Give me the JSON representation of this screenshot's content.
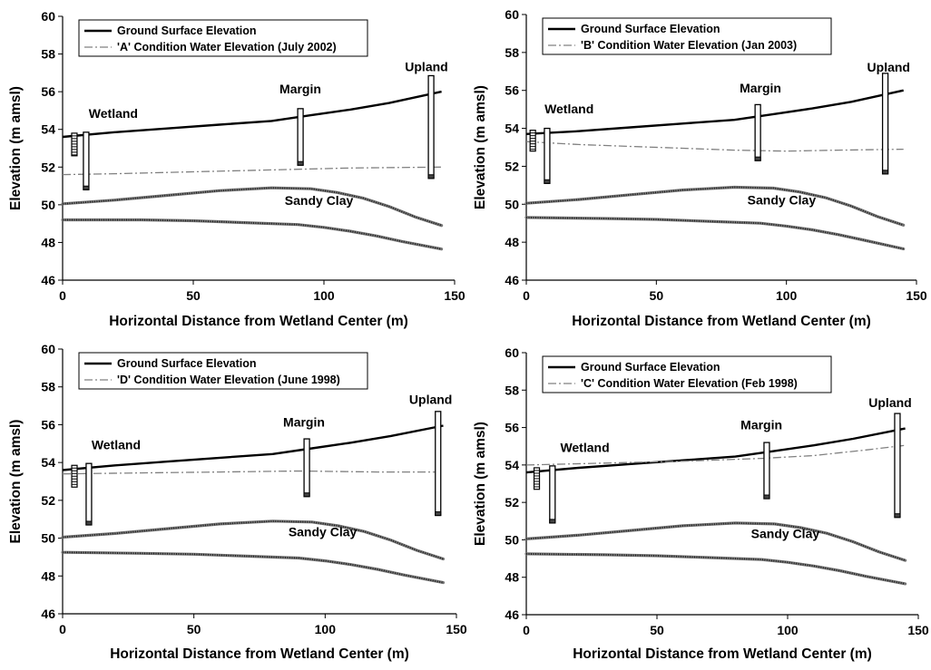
{
  "chart_data": [
    {
      "type": "line",
      "xlabel": "Horizontal Distance from Wetland Center (m)",
      "ylabel": "Elevation (m amsl)",
      "xlim": [
        0,
        150
      ],
      "ylim": [
        46,
        60
      ],
      "xticks": [
        0,
        50,
        100,
        150
      ],
      "yticks": [
        46,
        48,
        50,
        52,
        54,
        56,
        58,
        60
      ],
      "legend": {
        "placement": "top-left",
        "entries": [
          "Ground Surface Elevation",
          "'A' Condition Water Elevation (July 2002)"
        ]
      },
      "series": [
        {
          "name": "Ground Surface Elevation",
          "style": "solid",
          "color": "#000000",
          "x": [
            0,
            20,
            40,
            60,
            80,
            95,
            110,
            125,
            145
          ],
          "y": [
            53.6,
            53.85,
            54.05,
            54.25,
            54.45,
            54.75,
            55.05,
            55.4,
            56.0
          ]
        },
        {
          "name": "'A' Condition Water Elevation (July 2002)",
          "style": "dashdot",
          "color": "#808080",
          "x": [
            0,
            20,
            50,
            80,
            110,
            145
          ],
          "y": [
            51.6,
            51.65,
            51.75,
            51.85,
            51.95,
            52.0
          ]
        },
        {
          "style": "stipple",
          "x": [
            0,
            20,
            40,
            60,
            80,
            95,
            105,
            115,
            125,
            135,
            145
          ],
          "y": [
            50.05,
            50.25,
            50.5,
            50.75,
            50.9,
            50.85,
            50.65,
            50.35,
            49.9,
            49.35,
            48.9
          ]
        },
        {
          "style": "stipple",
          "x": [
            0,
            30,
            50,
            70,
            90,
            100,
            110,
            120,
            130,
            145
          ],
          "y": [
            49.2,
            49.2,
            49.15,
            49.05,
            48.95,
            48.8,
            48.6,
            48.35,
            48.05,
            47.65
          ]
        }
      ],
      "annotations": [
        {
          "text": "Wetland",
          "x": 10,
          "y": 54.6
        },
        {
          "text": "Margin",
          "x": 83,
          "y": 55.9
        },
        {
          "text": "Upland",
          "x": 131,
          "y": 57.1
        },
        {
          "text": "Sandy Clay",
          "x": 85,
          "y": 50.0
        }
      ],
      "wells": [
        {
          "x": 9,
          "top": 53.85,
          "bottom": 50.8
        },
        {
          "x": 91,
          "top": 55.1,
          "bottom": 52.1
        },
        {
          "x": 141,
          "top": 56.85,
          "bottom": 51.4
        }
      ],
      "piezometer": {
        "x": 4.5,
        "top": 53.8,
        "bottom": 52.6
      }
    },
    {
      "type": "line",
      "xlabel": "Horizontal Distance from Wetland Center (m)",
      "ylabel": "Elevation (m amsl)",
      "xlim": [
        0,
        150
      ],
      "ylim": [
        46,
        60
      ],
      "xticks": [
        0,
        50,
        100,
        150
      ],
      "yticks": [
        46,
        48,
        50,
        52,
        54,
        56,
        58,
        60
      ],
      "legend": {
        "placement": "top-left",
        "entries": [
          "Ground Surface Elevation",
          "'B' Condition Water Elevation (Jan 2003)"
        ]
      },
      "series": [
        {
          "name": "Ground Surface Elevation",
          "style": "solid",
          "color": "#000000",
          "x": [
            0,
            20,
            40,
            60,
            80,
            95,
            110,
            125,
            145
          ],
          "y": [
            53.7,
            53.85,
            54.05,
            54.25,
            54.45,
            54.75,
            55.05,
            55.4,
            56.0
          ]
        },
        {
          "name": "'B' Condition Water Elevation (Jan 2003)",
          "style": "dashdot",
          "color": "#808080",
          "x": [
            0,
            20,
            40,
            60,
            80,
            100,
            120,
            145
          ],
          "y": [
            53.3,
            53.15,
            53.05,
            52.95,
            52.85,
            52.8,
            52.85,
            52.9
          ]
        },
        {
          "style": "stipple",
          "x": [
            0,
            20,
            40,
            60,
            80,
            95,
            105,
            115,
            125,
            135,
            145
          ],
          "y": [
            50.05,
            50.25,
            50.5,
            50.75,
            50.9,
            50.85,
            50.65,
            50.35,
            49.9,
            49.35,
            48.9
          ]
        },
        {
          "style": "stipple",
          "x": [
            0,
            30,
            50,
            70,
            90,
            100,
            110,
            120,
            130,
            145
          ],
          "y": [
            49.3,
            49.25,
            49.2,
            49.1,
            49.0,
            48.85,
            48.65,
            48.4,
            48.1,
            47.65
          ]
        }
      ],
      "annotations": [
        {
          "text": "Wetland",
          "x": 7,
          "y": 54.8
        },
        {
          "text": "Margin",
          "x": 82,
          "y": 55.9
        },
        {
          "text": "Upland",
          "x": 131,
          "y": 57.0
        },
        {
          "text": "Sandy Clay",
          "x": 85,
          "y": 50.0
        }
      ],
      "wells": [
        {
          "x": 8,
          "top": 54.0,
          "bottom": 51.1
        },
        {
          "x": 89,
          "top": 55.25,
          "bottom": 52.3
        },
        {
          "x": 138,
          "top": 56.9,
          "bottom": 51.6
        }
      ],
      "piezometer": {
        "x": 2.5,
        "top": 53.9,
        "bottom": 52.8
      }
    },
    {
      "type": "line",
      "xlabel": "Horizontal Distance from Wetland Center (m)",
      "ylabel": "Elevation (m amsl)",
      "xlim": [
        0,
        150
      ],
      "ylim": [
        46,
        60
      ],
      "xticks": [
        0,
        50,
        100,
        150
      ],
      "yticks": [
        46,
        48,
        50,
        52,
        54,
        56,
        58,
        60
      ],
      "legend": {
        "placement": "top-left",
        "entries": [
          "Ground Surface Elevation",
          "'D' Condition Water Elevation (June 1998)"
        ]
      },
      "series": [
        {
          "name": "Ground Surface Elevation",
          "style": "solid",
          "color": "#000000",
          "x": [
            0,
            20,
            40,
            60,
            80,
            95,
            110,
            125,
            145
          ],
          "y": [
            53.6,
            53.85,
            54.05,
            54.25,
            54.45,
            54.75,
            55.05,
            55.4,
            55.95
          ]
        },
        {
          "name": "'D' Condition Water Elevation (June 1998)",
          "style": "dashdot",
          "color": "#808080",
          "x": [
            0,
            30,
            60,
            90,
            120,
            145
          ],
          "y": [
            53.4,
            53.45,
            53.5,
            53.55,
            53.5,
            53.5
          ]
        },
        {
          "style": "stipple",
          "x": [
            0,
            20,
            40,
            60,
            80,
            95,
            105,
            115,
            125,
            135,
            145
          ],
          "y": [
            50.05,
            50.25,
            50.5,
            50.75,
            50.9,
            50.85,
            50.65,
            50.35,
            49.9,
            49.35,
            48.9
          ]
        },
        {
          "style": "stipple",
          "x": [
            0,
            30,
            50,
            70,
            90,
            100,
            110,
            120,
            130,
            145
          ],
          "y": [
            49.25,
            49.2,
            49.15,
            49.05,
            48.95,
            48.8,
            48.6,
            48.35,
            48.05,
            47.65
          ]
        }
      ],
      "annotations": [
        {
          "text": "Wetland",
          "x": 11,
          "y": 54.7
        },
        {
          "text": "Margin",
          "x": 84,
          "y": 55.9
        },
        {
          "text": "Upland",
          "x": 132,
          "y": 57.1
        },
        {
          "text": "Sandy Clay",
          "x": 86,
          "y": 50.1
        }
      ],
      "wells": [
        {
          "x": 10,
          "top": 53.95,
          "bottom": 50.7
        },
        {
          "x": 93,
          "top": 55.25,
          "bottom": 52.2
        },
        {
          "x": 143,
          "top": 56.7,
          "bottom": 51.2
        }
      ],
      "piezometer": {
        "x": 4.5,
        "top": 53.85,
        "bottom": 52.7
      }
    },
    {
      "type": "line",
      "xlabel": "Horizontal Distance from Wetland Center (m)",
      "ylabel": "Elevation (m amsl)",
      "xlim": [
        0,
        150
      ],
      "ylim": [
        46,
        60
      ],
      "xticks": [
        0,
        50,
        100,
        150
      ],
      "yticks": [
        46,
        48,
        50,
        52,
        54,
        56,
        58,
        60
      ],
      "legend": {
        "placement": "top-left",
        "entries": [
          "Ground Surface Elevation",
          "'C' Condition Water Elevation (Feb 1998)"
        ]
      },
      "series": [
        {
          "name": "Ground Surface Elevation",
          "style": "solid",
          "color": "#000000",
          "x": [
            0,
            20,
            40,
            60,
            80,
            95,
            110,
            125,
            145
          ],
          "y": [
            53.6,
            53.85,
            54.05,
            54.25,
            54.45,
            54.75,
            55.05,
            55.4,
            55.95
          ]
        },
        {
          "name": "'C' Condition Water Elevation (Feb 1998)",
          "style": "dashdot",
          "color": "#808080",
          "x": [
            0,
            30,
            60,
            90,
            110,
            130,
            145
          ],
          "y": [
            54.0,
            54.1,
            54.2,
            54.35,
            54.5,
            54.8,
            55.05
          ]
        },
        {
          "style": "stipple",
          "x": [
            0,
            20,
            40,
            60,
            80,
            95,
            105,
            115,
            125,
            135,
            145
          ],
          "y": [
            50.05,
            50.25,
            50.5,
            50.75,
            50.9,
            50.85,
            50.65,
            50.35,
            49.9,
            49.35,
            48.9
          ]
        },
        {
          "style": "stipple",
          "x": [
            0,
            30,
            50,
            70,
            90,
            100,
            110,
            120,
            130,
            145
          ],
          "y": [
            49.25,
            49.2,
            49.15,
            49.05,
            48.95,
            48.8,
            48.6,
            48.35,
            48.05,
            47.65
          ]
        }
      ],
      "annotations": [
        {
          "text": "Wetland",
          "x": 13,
          "y": 54.7
        },
        {
          "text": "Margin",
          "x": 82,
          "y": 55.9
        },
        {
          "text": "Upland",
          "x": 131,
          "y": 57.1
        },
        {
          "text": "Sandy Clay",
          "x": 86,
          "y": 50.1
        }
      ],
      "wells": [
        {
          "x": 10,
          "top": 53.95,
          "bottom": 50.9
        },
        {
          "x": 92,
          "top": 55.2,
          "bottom": 52.2
        },
        {
          "x": 142,
          "top": 56.75,
          "bottom": 51.2
        }
      ],
      "piezometer": {
        "x": 4,
        "top": 53.85,
        "bottom": 52.7
      }
    }
  ]
}
